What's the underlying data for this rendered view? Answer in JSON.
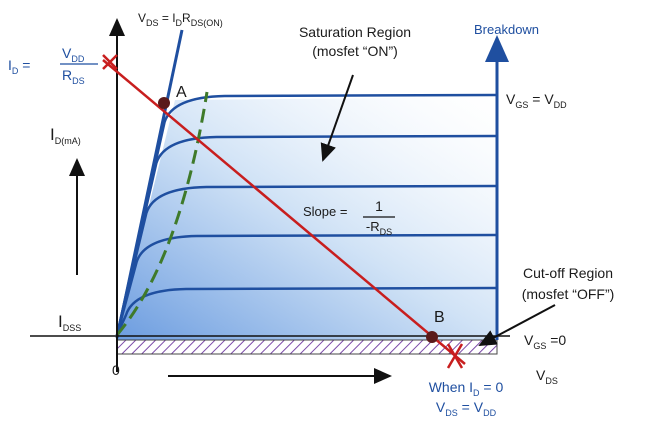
{
  "labels": {
    "ohmic_formula": [
      "V",
      {
        "sub": "DS"
      },
      " = I",
      {
        "sub": "D"
      },
      "R",
      {
        "sub": "DS(ON)"
      }
    ],
    "id_left": [
      "I",
      {
        "sub": "D"
      },
      " ="
    ],
    "id_num": [
      "V",
      {
        "sub": "DD"
      }
    ],
    "id_den": [
      "R",
      {
        "sub": "DS"
      }
    ],
    "saturation_1": [
      "Saturation Region"
    ],
    "saturation_2": [
      "(mosfet “ON”)"
    ],
    "breakdown": [
      "Breakdown"
    ],
    "vgs_vdd": [
      "V",
      {
        "sub": "GS"
      },
      " = V",
      {
        "sub": "DD"
      }
    ],
    "y_axis": [
      "I",
      {
        "sub": "D(mA)"
      }
    ],
    "point_a": [
      "A"
    ],
    "point_b": [
      "B"
    ],
    "slope": [
      "Slope ="
    ],
    "slope_num": [
      "1"
    ],
    "slope_den": [
      "-R",
      {
        "sub": "DS"
      }
    ],
    "cutoff_1": [
      "Cut-off Region"
    ],
    "cutoff_2": [
      "(mosfet “OFF”)"
    ],
    "idss": [
      "I",
      {
        "sub": "DSS"
      }
    ],
    "vgs_zero": [
      "V",
      {
        "sub": "GS"
      },
      " =0"
    ],
    "origin": [
      "0"
    ],
    "x_axis": [
      "V",
      {
        "sub": "DS"
      }
    ],
    "when_1": [
      "When I",
      {
        "sub": "D"
      },
      " = 0"
    ],
    "when_2": [
      "V",
      {
        "sub": "DS"
      },
      " = V",
      {
        "sub": "DD"
      }
    ]
  }
}
